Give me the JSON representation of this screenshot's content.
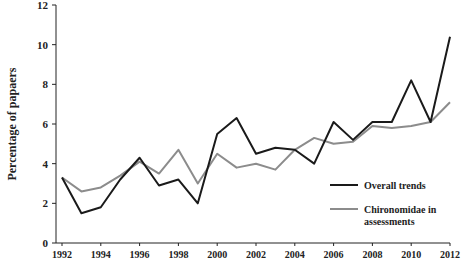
{
  "chart_data": {
    "type": "line",
    "y_label": "Percentage of papaers",
    "x": [
      1992,
      1993,
      1994,
      1995,
      1996,
      1997,
      1998,
      1999,
      2000,
      2001,
      2002,
      2003,
      2004,
      2005,
      2006,
      2007,
      2008,
      2009,
      2010,
      2011,
      2012
    ],
    "series": [
      {
        "name": "Overall trends",
        "color": "#1a1a1a",
        "values": [
          3.3,
          1.5,
          1.8,
          3.2,
          4.3,
          2.9,
          3.2,
          2.0,
          5.5,
          6.3,
          4.5,
          4.8,
          4.7,
          4.0,
          6.1,
          5.2,
          6.1,
          6.1,
          8.2,
          6.1,
          10.4
        ]
      },
      {
        "name": "Chironomidae in assessments",
        "color": "#8c8c8c",
        "values": [
          3.3,
          2.6,
          2.8,
          3.4,
          4.1,
          3.5,
          4.7,
          3.0,
          4.5,
          3.8,
          4.0,
          3.7,
          4.7,
          5.3,
          5.0,
          5.1,
          5.9,
          5.8,
          5.9,
          6.1,
          7.1
        ]
      }
    ],
    "xlim": [
      1992,
      2012
    ],
    "xticks": [
      1992,
      1994,
      1996,
      1998,
      2000,
      2002,
      2004,
      2006,
      2008,
      2010,
      2012
    ],
    "ylim": [
      0,
      12
    ],
    "yticks": [
      0,
      2,
      4,
      6,
      8,
      10,
      12
    ],
    "grid": false,
    "legend": "lower right"
  }
}
